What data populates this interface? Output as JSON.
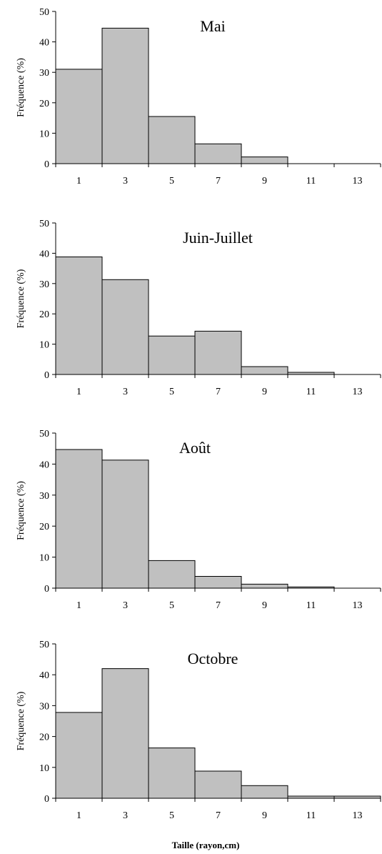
{
  "chart_data": [
    {
      "type": "bar",
      "title": "Mai",
      "ylabel": "Fréquence (%)",
      "xlabel": "",
      "categories": [
        "1",
        "3",
        "5",
        "7",
        "9",
        "11",
        "13"
      ],
      "values": [
        31,
        44.5,
        15.5,
        6.5,
        2.2,
        0,
        0
      ],
      "ylim": [
        0,
        50
      ],
      "yticks": [
        0,
        10,
        20,
        30,
        40,
        50
      ],
      "grid": false
    },
    {
      "type": "bar",
      "title": "Juin-Juillet",
      "ylabel": "Fréquence (%)",
      "xlabel": "",
      "categories": [
        "1",
        "3",
        "5",
        "7",
        "9",
        "11",
        "13"
      ],
      "values": [
        38.8,
        31.3,
        12.7,
        14.3,
        2.6,
        0.7,
        0
      ],
      "ylim": [
        0,
        50
      ],
      "yticks": [
        0,
        10,
        20,
        30,
        40,
        50
      ],
      "grid": false
    },
    {
      "type": "bar",
      "title": "Août",
      "ylabel": "Fréquence (%)",
      "xlabel": "",
      "categories": [
        "1",
        "3",
        "5",
        "7",
        "9",
        "11",
        "13"
      ],
      "values": [
        44.7,
        41.3,
        8.9,
        3.8,
        1.3,
        0.4,
        0
      ],
      "ylim": [
        0,
        50
      ],
      "yticks": [
        0,
        10,
        20,
        30,
        40,
        50
      ],
      "grid": false
    },
    {
      "type": "bar",
      "title": "Octobre",
      "ylabel": "Fréquence (%)",
      "xlabel": "Taille (rayon,cm)",
      "categories": [
        "1",
        "3",
        "5",
        "7",
        "9",
        "11",
        "13"
      ],
      "values": [
        27.8,
        42,
        16.3,
        8.8,
        4.1,
        0.7,
        0.7
      ],
      "ylim": [
        0,
        50
      ],
      "yticks": [
        0,
        10,
        20,
        30,
        40,
        50
      ],
      "grid": false
    }
  ]
}
